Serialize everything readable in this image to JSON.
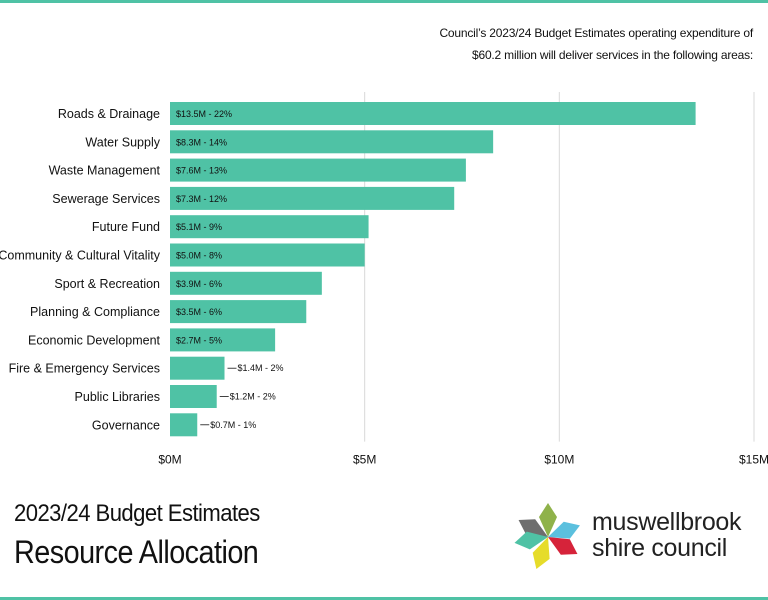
{
  "colors": {
    "bar": "#4fc2a5",
    "rule": "#4fc2a5",
    "grid": "#d9d9d9",
    "logo_petals": [
      "#6e6e6e",
      "#8fb24a",
      "#5bc0de",
      "#d6233a",
      "#e6dc2a",
      "#4fc2a5"
    ]
  },
  "intro": {
    "line1": "Council’s 2023/24 Budget Estimates operating expenditure of",
    "line2": "$60.2 million will deliver services in the following areas:"
  },
  "chart_data": {
    "type": "bar",
    "orientation": "horizontal",
    "categories": [
      "Roads & Drainage",
      "Water Supply",
      "Waste Management",
      "Sewerage Services",
      "Future Fund",
      "Community & Cultural Vitality",
      "Sport & Recreation",
      "Planning & Compliance",
      "Economic Development",
      "Fire & Emergency Services",
      "Public Libraries",
      "Governance"
    ],
    "values": [
      13.5,
      8.3,
      7.6,
      7.3,
      5.1,
      5.0,
      3.9,
      3.5,
      2.7,
      1.4,
      1.2,
      0.7
    ],
    "data_labels": [
      "$13.5M - 22%",
      "$8.3M - 14%",
      "$7.6M - 13%",
      "$7.3M - 12%",
      "$5.1M - 9%",
      "$5.0M - 8%",
      "$3.9M - 6%",
      "$3.5M - 6%",
      "$2.7M - 5%",
      "$1.4M - 2%",
      "$1.2M - 2%",
      "$0.7M - 1%"
    ],
    "xlim": [
      0,
      15
    ],
    "xticks": [
      0,
      5,
      10,
      15
    ],
    "xtick_labels": [
      "$0M",
      "$5M",
      "$10M",
      "$15M"
    ],
    "grid": true,
    "title": "",
    "xlabel": "",
    "ylabel": ""
  },
  "footer": {
    "line1": "2023/24 Budget Estimates",
    "line2": "Resource Allocation"
  },
  "logo": {
    "name_line1": "muswellbrook",
    "name_line2": "shire council"
  }
}
